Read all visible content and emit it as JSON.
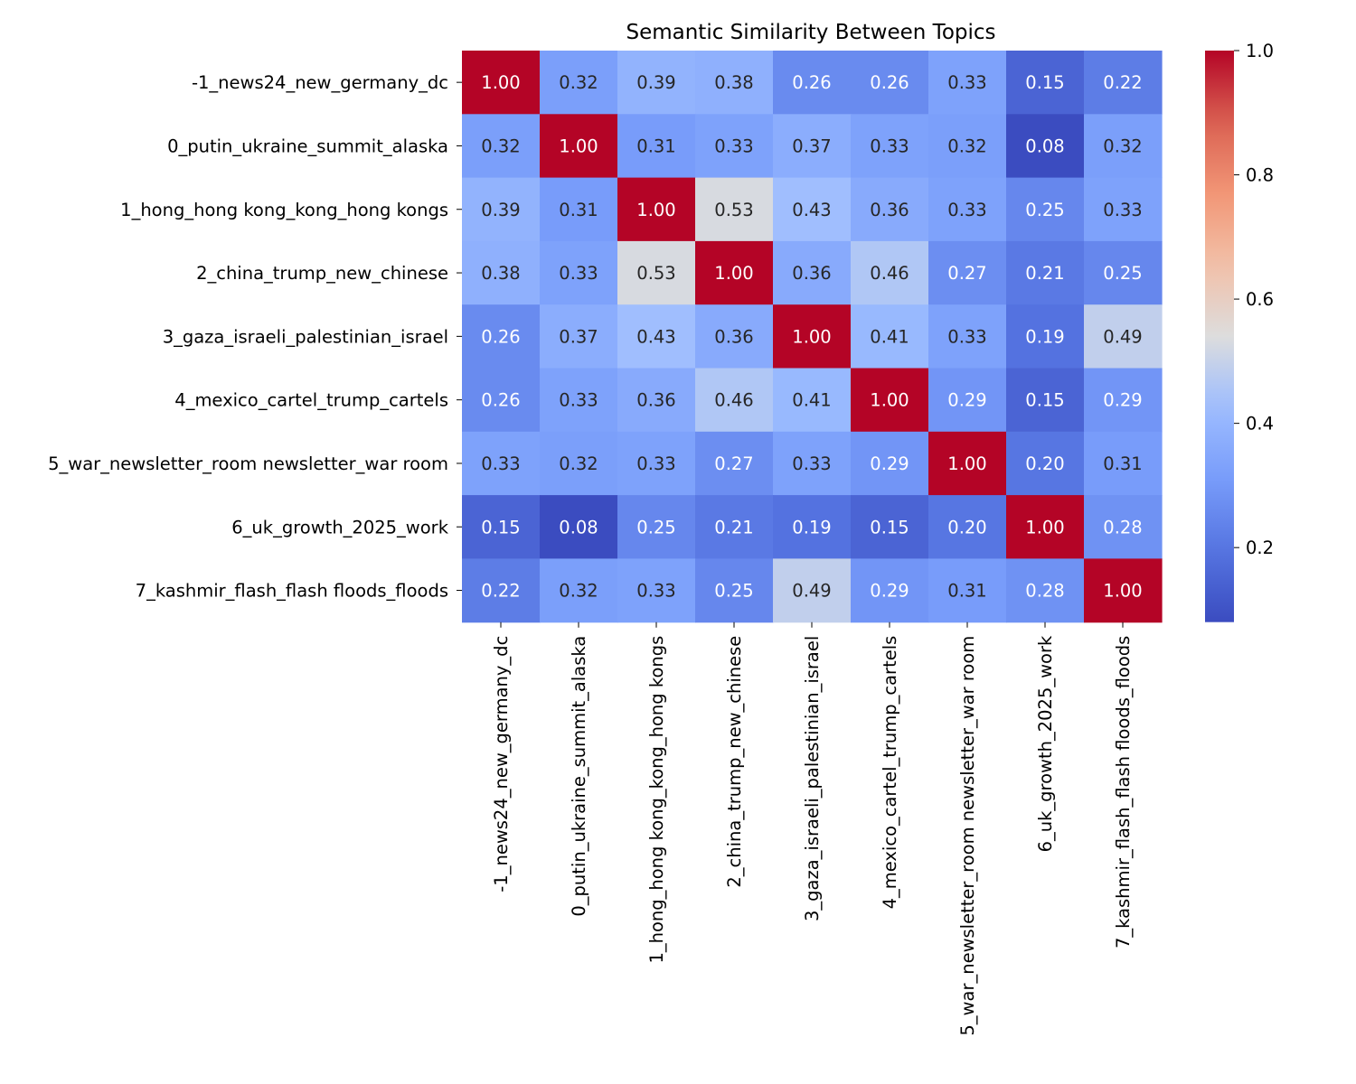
{
  "chart_data": {
    "type": "heatmap",
    "title": "Semantic Similarity Between Topics",
    "xlabel": "",
    "ylabel": "",
    "labels": [
      "-1_news24_new_germany_dc",
      "0_putin_ukraine_summit_alaska",
      "1_hong_hong kong_kong_hong kongs",
      "2_china_trump_new_chinese",
      "3_gaza_israeli_palestinian_israel",
      "4_mexico_cartel_trump_cartels",
      "5_war_newsletter_room newsletter_war room",
      "6_uk_growth_2025_work",
      "7_kashmir_flash_flash floods_floods"
    ],
    "matrix": [
      [
        1.0,
        0.32,
        0.39,
        0.38,
        0.26,
        0.26,
        0.33,
        0.15,
        0.22
      ],
      [
        0.32,
        1.0,
        0.31,
        0.33,
        0.37,
        0.33,
        0.32,
        0.08,
        0.32
      ],
      [
        0.39,
        0.31,
        1.0,
        0.53,
        0.43,
        0.36,
        0.33,
        0.25,
        0.33
      ],
      [
        0.38,
        0.33,
        0.53,
        1.0,
        0.36,
        0.46,
        0.27,
        0.21,
        0.25
      ],
      [
        0.26,
        0.37,
        0.43,
        0.36,
        1.0,
        0.41,
        0.33,
        0.19,
        0.49
      ],
      [
        0.26,
        0.33,
        0.36,
        0.46,
        0.41,
        1.0,
        0.29,
        0.15,
        0.29
      ],
      [
        0.33,
        0.32,
        0.33,
        0.27,
        0.33,
        0.29,
        1.0,
        0.2,
        0.31
      ],
      [
        0.15,
        0.08,
        0.25,
        0.21,
        0.19,
        0.15,
        0.2,
        1.0,
        0.28
      ],
      [
        0.22,
        0.32,
        0.33,
        0.25,
        0.49,
        0.29,
        0.31,
        0.28,
        1.0
      ]
    ],
    "annotation_format": "0.00",
    "colormap": "coolwarm",
    "value_range": [
      0.08,
      1.0
    ],
    "colorbar": {
      "ticks": [
        "0.2",
        "0.4",
        "0.6",
        "0.8",
        "1.0"
      ]
    }
  }
}
